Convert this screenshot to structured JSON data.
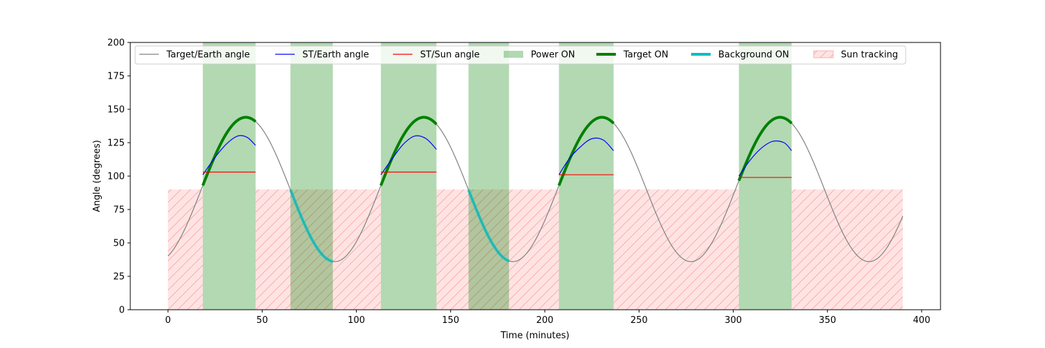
{
  "chart_data": {
    "type": "line",
    "title": "",
    "xlabel": "Time (minutes)",
    "ylabel": "Angle (degrees)",
    "xlim": [
      -20,
      410
    ],
    "ylim": [
      0,
      200
    ],
    "xticks": [
      0,
      50,
      100,
      150,
      200,
      250,
      300,
      350,
      400
    ],
    "yticks": [
      0,
      25,
      50,
      75,
      100,
      125,
      150,
      175,
      200
    ],
    "grid": false,
    "legend_position": "top",
    "target_earth_angle": {
      "name": "Target/Earth angle",
      "color": "#808080",
      "orbit_period": 94.5,
      "min": 36,
      "max": 144,
      "t_start": 0,
      "t_end": 390,
      "first_peak_time": 41.3
    },
    "power_on": {
      "name": "Power ON",
      "color": "#008000",
      "intervals": [
        [
          18.5,
          46.5
        ],
        [
          65,
          87.5
        ],
        [
          113,
          142.5
        ],
        [
          159.5,
          181
        ],
        [
          207.5,
          236.5
        ],
        [
          303,
          331
        ]
      ]
    },
    "target_on": {
      "name": "Target ON",
      "color": "#008000",
      "intervals": [
        [
          18.5,
          46.5
        ],
        [
          113,
          142.5
        ],
        [
          207.5,
          236.5
        ],
        [
          303,
          331
        ]
      ]
    },
    "background_on": {
      "name": "Background ON",
      "color": "#00bfbf",
      "intervals": [
        [
          65,
          87.5
        ],
        [
          159.5,
          181
        ]
      ]
    },
    "sun_tracking": {
      "name": "Sun tracking",
      "color": "#ff9999",
      "level": 90,
      "intervals": [
        [
          0,
          18.5
        ],
        [
          46.5,
          113
        ],
        [
          142.5,
          207.5
        ],
        [
          236.5,
          303
        ],
        [
          331,
          390
        ]
      ]
    },
    "st_earth_angle": {
      "name": "ST/Earth angle",
      "color": "#0000ff",
      "segments": [
        {
          "x": [
            18.5,
            25,
            31,
            37,
            42,
            46.5
          ],
          "y": [
            101,
            114,
            124,
            130,
            129,
            123
          ]
        },
        {
          "x": [
            113,
            119,
            125,
            131,
            137,
            142.5
          ],
          "y": [
            101,
            113,
            124,
            130,
            128,
            120
          ]
        },
        {
          "x": [
            207.5,
            213,
            219,
            225,
            231,
            236.5
          ],
          "y": [
            101,
            113,
            122,
            128,
            127,
            119
          ]
        },
        {
          "x": [
            303,
            309,
            315,
            321,
            327,
            331
          ],
          "y": [
            100,
            112,
            121,
            126,
            125,
            119
          ]
        }
      ]
    },
    "st_sun_angle": {
      "name": "ST/Sun angle",
      "color": "#ff0000",
      "segments": [
        {
          "x": [
            18.5,
            46.5
          ],
          "y": [
            103,
            103
          ]
        },
        {
          "x": [
            113,
            142.5
          ],
          "y": [
            103,
            103
          ]
        },
        {
          "x": [
            207.5,
            236.5
          ],
          "y": [
            101,
            101
          ]
        },
        {
          "x": [
            303,
            331
          ],
          "y": [
            99,
            99
          ]
        }
      ]
    }
  }
}
